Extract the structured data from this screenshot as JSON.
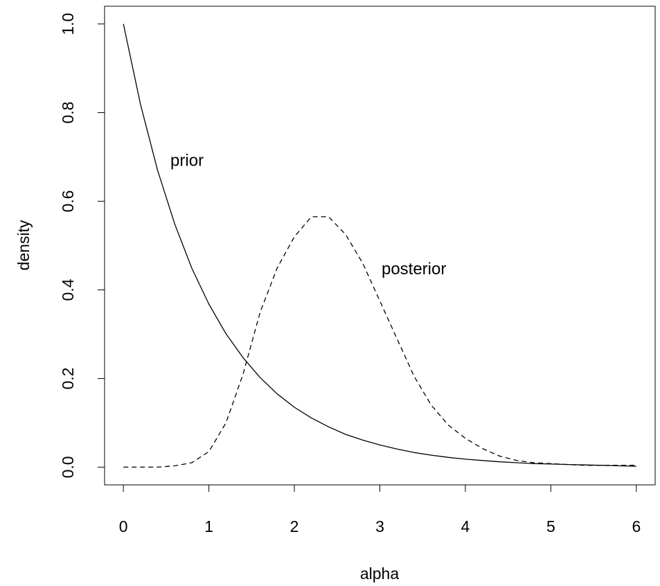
{
  "chart_data": {
    "type": "line",
    "title": "",
    "xlabel": "alpha",
    "ylabel": "density",
    "xlim": [
      -0.22,
      6.22
    ],
    "ylim": [
      -0.04,
      1.04
    ],
    "xticks": [
      0,
      1,
      2,
      3,
      4,
      5,
      6
    ],
    "yticks": [
      0.0,
      0.2,
      0.4,
      0.6,
      0.8,
      1.0
    ],
    "xtick_labels": [
      "0",
      "1",
      "2",
      "3",
      "4",
      "5",
      "6"
    ],
    "ytick_labels": [
      "0.0",
      "0.2",
      "0.4",
      "0.6",
      "0.8",
      "1.0"
    ],
    "grid": false,
    "legend": "none",
    "series": [
      {
        "name": "prior",
        "line_style": "solid",
        "x": [
          0,
          0.2,
          0.4,
          0.6,
          0.8,
          1.0,
          1.2,
          1.4,
          1.6,
          1.8,
          2.0,
          2.2,
          2.4,
          2.6,
          2.8,
          3.0,
          3.2,
          3.4,
          3.6,
          3.8,
          4.0,
          4.2,
          4.4,
          4.6,
          4.8,
          5.0,
          5.2,
          5.4,
          5.6,
          5.8,
          6.0
        ],
        "y": [
          1.0,
          0.819,
          0.67,
          0.549,
          0.449,
          0.368,
          0.301,
          0.247,
          0.202,
          0.165,
          0.135,
          0.111,
          0.091,
          0.074,
          0.061,
          0.05,
          0.041,
          0.033,
          0.027,
          0.022,
          0.018,
          0.015,
          0.012,
          0.01,
          0.008,
          0.007,
          0.006,
          0.005,
          0.004,
          0.003,
          0.002
        ]
      },
      {
        "name": "posterior",
        "line_style": "dashed",
        "x": [
          0,
          0.2,
          0.4,
          0.6,
          0.8,
          1.0,
          1.2,
          1.4,
          1.6,
          1.8,
          2.0,
          2.2,
          2.4,
          2.6,
          2.8,
          3.0,
          3.2,
          3.4,
          3.6,
          3.8,
          4.0,
          4.2,
          4.4,
          4.6,
          4.8,
          5.0,
          5.2,
          5.4,
          5.6,
          5.8,
          6.0
        ],
        "y": [
          0.0,
          0.0,
          0.0,
          0.003,
          0.01,
          0.035,
          0.1,
          0.21,
          0.35,
          0.45,
          0.52,
          0.565,
          0.565,
          0.525,
          0.46,
          0.375,
          0.29,
          0.205,
          0.14,
          0.095,
          0.065,
          0.042,
          0.025,
          0.015,
          0.01,
          0.008,
          0.006,
          0.004,
          0.004,
          0.004,
          0.004
        ]
      }
    ],
    "annotations": [
      {
        "text": "prior",
        "x": 0.55,
        "y": 0.69
      },
      {
        "text": "posterior",
        "x": 3.02,
        "y": 0.445
      }
    ]
  }
}
